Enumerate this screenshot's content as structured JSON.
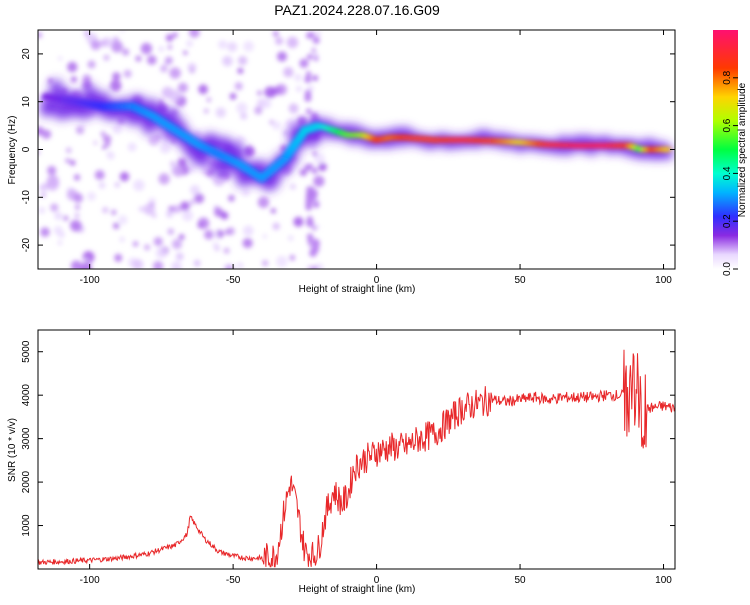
{
  "figure_title": "PAZ1.2024.228.07.16.G09",
  "chart_data": [
    {
      "type": "heatmap",
      "title": "PAZ1.2024.228.07.16.G09",
      "xlabel": "Height of straight line (km)",
      "ylabel": "Frequency (Hz)",
      "xlim": [
        -118,
        104
      ],
      "ylim": [
        -25,
        25
      ],
      "x_ticks": [
        -100,
        -50,
        0,
        50,
        100
      ],
      "x_tick_labels": [
        "-100",
        "-50",
        "0",
        "50",
        "100"
      ],
      "y_ticks": [
        -20,
        -10,
        0,
        10,
        20
      ],
      "y_tick_labels": [
        "-20",
        "-10",
        "0",
        "10",
        "20"
      ],
      "colorbar": {
        "label": "Normalized spectral amplitude",
        "range": [
          0,
          1
        ],
        "ticks": [
          0.0,
          0.2,
          0.4,
          0.6,
          0.8
        ],
        "tick_labels": [
          "0.0",
          "0.2",
          "0.4",
          "0.6",
          "0.8"
        ],
        "colormap": "rainbow (purple-blue-cyan-green-yellow-red-magenta)"
      },
      "ridge": [
        {
          "x": -115,
          "y": 11,
          "amp": 0.15
        },
        {
          "x": -105,
          "y": 10,
          "amp": 0.18
        },
        {
          "x": -95,
          "y": 9,
          "amp": 0.22
        },
        {
          "x": -85,
          "y": 9,
          "amp": 0.28
        },
        {
          "x": -78,
          "y": 7,
          "amp": 0.3
        },
        {
          "x": -70,
          "y": 4,
          "amp": 0.3
        },
        {
          "x": -62,
          "y": 1,
          "amp": 0.3
        },
        {
          "x": -55,
          "y": -1,
          "amp": 0.28
        },
        {
          "x": -48,
          "y": -3,
          "amp": 0.3
        },
        {
          "x": -40,
          "y": -6,
          "amp": 0.3
        },
        {
          "x": -32,
          "y": -2,
          "amp": 0.3
        },
        {
          "x": -25,
          "y": 4,
          "amp": 0.35
        },
        {
          "x": -20,
          "y": 5,
          "amp": 0.35
        },
        {
          "x": -15,
          "y": 4,
          "amp": 0.45
        },
        {
          "x": -10,
          "y": 3,
          "amp": 0.55
        },
        {
          "x": -5,
          "y": 3,
          "amp": 0.6
        },
        {
          "x": 0,
          "y": 2,
          "amp": 0.85
        },
        {
          "x": 5,
          "y": 2.5,
          "amp": 0.8
        },
        {
          "x": 10,
          "y": 2.5,
          "amp": 0.85
        },
        {
          "x": 20,
          "y": 2,
          "amp": 0.85
        },
        {
          "x": 30,
          "y": 2,
          "amp": 0.9
        },
        {
          "x": 40,
          "y": 1.8,
          "amp": 0.85
        },
        {
          "x": 50,
          "y": 1.5,
          "amp": 0.7
        },
        {
          "x": 60,
          "y": 1,
          "amp": 0.9
        },
        {
          "x": 70,
          "y": 0.8,
          "amp": 0.95
        },
        {
          "x": 80,
          "y": 0.8,
          "amp": 0.95
        },
        {
          "x": 88,
          "y": 0.8,
          "amp": 0.85
        },
        {
          "x": 92,
          "y": 0,
          "amp": 0.5
        },
        {
          "x": 96,
          "y": 0,
          "amp": 0.85
        },
        {
          "x": 102,
          "y": 0,
          "amp": 0.7
        }
      ]
    },
    {
      "type": "line",
      "xlabel": "Height of straight line (km)",
      "ylabel": "SNR (10 * v/v)",
      "xlim": [
        -118,
        104
      ],
      "ylim": [
        0,
        5500
      ],
      "x_ticks": [
        -100,
        -50,
        0,
        50,
        100
      ],
      "x_tick_labels": [
        "-100",
        "-50",
        "0",
        "50",
        "100"
      ],
      "y_ticks": [
        1000,
        2000,
        3000,
        4000,
        5000
      ],
      "y_tick_labels": [
        "1000",
        "2000",
        "3000",
        "4000",
        "5000"
      ],
      "line_color": "#e8282a",
      "series": [
        {
          "x": [
            -118,
            -110,
            -100,
            -90,
            -80,
            -75,
            -70,
            -66,
            -65,
            -62,
            -60,
            -55,
            -50,
            -45,
            -40,
            -35,
            -32,
            -30,
            -28,
            -25,
            -22,
            -20,
            -18,
            -15,
            -12,
            -10,
            -8,
            -5,
            -2,
            0,
            5,
            10,
            15,
            20,
            25,
            30,
            35,
            40,
            45,
            50,
            55,
            60,
            65,
            70,
            75,
            80,
            85,
            88,
            90,
            92,
            95,
            100,
            104
          ],
          "values": [
            150,
            170,
            200,
            250,
            350,
            450,
            550,
            800,
            1200,
            900,
            700,
            400,
            300,
            250,
            250,
            300,
            1400,
            2000,
            1500,
            400,
            300,
            500,
            1200,
            1800,
            1500,
            1700,
            2300,
            2500,
            2600,
            2700,
            2800,
            2800,
            3000,
            3100,
            3400,
            3700,
            3800,
            3900,
            3850,
            3900,
            3950,
            3900,
            3950,
            3950,
            3950,
            4000,
            4000,
            4000,
            4300,
            3500,
            3700,
            3750,
            3700
          ]
        }
      ]
    }
  ]
}
